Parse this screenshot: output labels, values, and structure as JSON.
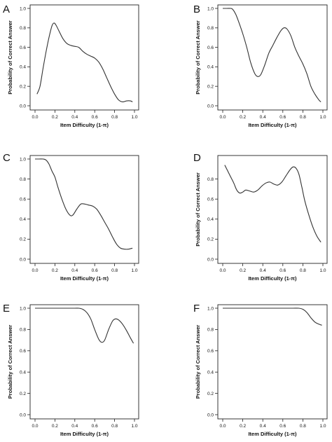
{
  "chart_data": [
    {
      "type": "line",
      "panel_label": "A",
      "xlabel": "Item Difficulty (1-π)",
      "ylabel": "Probability of Correct Answer",
      "xlim": [
        0,
        1
      ],
      "ylim": [
        0,
        1
      ],
      "x_ticks": [
        "0.0",
        "0.2",
        "0.4",
        "0.6",
        "0.8",
        "1.0"
      ],
      "y_ticks": [
        "0.0",
        "0.2",
        "0.4",
        "0.6",
        "0.8",
        "1.0"
      ],
      "series": [
        {
          "x": [
            0.02,
            0.05,
            0.08,
            0.11,
            0.14,
            0.17,
            0.19,
            0.21,
            0.24,
            0.28,
            0.32,
            0.36,
            0.4,
            0.44,
            0.48,
            0.52,
            0.56,
            0.6,
            0.64,
            0.68,
            0.72,
            0.76,
            0.8,
            0.84,
            0.88,
            0.92,
            0.96,
            0.98
          ],
          "values": [
            0.12,
            0.2,
            0.38,
            0.55,
            0.7,
            0.82,
            0.85,
            0.83,
            0.77,
            0.69,
            0.64,
            0.62,
            0.61,
            0.6,
            0.56,
            0.53,
            0.51,
            0.49,
            0.45,
            0.38,
            0.29,
            0.2,
            0.12,
            0.06,
            0.04,
            0.05,
            0.05,
            0.04
          ]
        }
      ]
    },
    {
      "type": "line",
      "panel_label": "B",
      "xlabel": "Item Difficulty (1-π)",
      "ylabel": "Probability of Correct Answer",
      "xlim": [
        0,
        1
      ],
      "ylim": [
        0,
        1
      ],
      "x_ticks": [
        "0.0",
        "0.2",
        "0.4",
        "0.6",
        "0.8",
        "1.0"
      ],
      "y_ticks": [
        "0.0",
        "0.2",
        "0.4",
        "0.6",
        "0.8",
        "1.0"
      ],
      "series": [
        {
          "x": [
            0.0,
            0.04,
            0.08,
            0.1,
            0.13,
            0.16,
            0.2,
            0.24,
            0.28,
            0.32,
            0.35,
            0.38,
            0.42,
            0.46,
            0.5,
            0.54,
            0.58,
            0.61,
            0.64,
            0.68,
            0.72,
            0.76,
            0.8,
            0.84,
            0.88,
            0.92,
            0.96,
            0.98
          ],
          "values": [
            1.0,
            1.0,
            1.0,
            0.99,
            0.94,
            0.86,
            0.74,
            0.6,
            0.44,
            0.33,
            0.3,
            0.32,
            0.42,
            0.54,
            0.62,
            0.7,
            0.77,
            0.8,
            0.79,
            0.72,
            0.6,
            0.51,
            0.43,
            0.33,
            0.2,
            0.12,
            0.06,
            0.04
          ]
        }
      ]
    },
    {
      "type": "line",
      "panel_label": "C",
      "xlabel": "Item Difficulty (1-π)",
      "ylabel": "",
      "xlim": [
        0,
        1
      ],
      "ylim": [
        0,
        1
      ],
      "x_ticks": [
        "0.0",
        "0.2",
        "0.4",
        "0.6",
        "0.8",
        "1.0"
      ],
      "y_ticks": [
        "0.0",
        "0.2",
        "0.4",
        "0.6",
        "0.8",
        "1.0"
      ],
      "series": [
        {
          "x": [
            0.0,
            0.04,
            0.08,
            0.11,
            0.14,
            0.17,
            0.2,
            0.23,
            0.27,
            0.31,
            0.35,
            0.38,
            0.42,
            0.46,
            0.5,
            0.54,
            0.58,
            0.62,
            0.66,
            0.7,
            0.74,
            0.78,
            0.82,
            0.86,
            0.9,
            0.94,
            0.98
          ],
          "values": [
            1.0,
            1.0,
            1.0,
            0.99,
            0.95,
            0.88,
            0.82,
            0.72,
            0.6,
            0.5,
            0.44,
            0.44,
            0.5,
            0.55,
            0.55,
            0.54,
            0.53,
            0.5,
            0.44,
            0.37,
            0.3,
            0.22,
            0.15,
            0.11,
            0.1,
            0.1,
            0.11
          ]
        }
      ]
    },
    {
      "type": "line",
      "panel_label": "D",
      "xlabel": "Item Difficulty (1-π)",
      "ylabel": "Probability of Correct Answer",
      "xlim": [
        0,
        1
      ],
      "ylim": [
        0,
        1
      ],
      "x_ticks": [
        "0.0",
        "0.2",
        "0.4",
        "0.6",
        "0.8",
        "1.0"
      ],
      "y_ticks": [
        "0.0",
        "0.2",
        "0.4",
        "0.6",
        "0.8"
      ],
      "series": [
        {
          "x": [
            0.02,
            0.05,
            0.08,
            0.11,
            0.14,
            0.17,
            0.2,
            0.23,
            0.27,
            0.31,
            0.35,
            0.39,
            0.43,
            0.47,
            0.51,
            0.55,
            0.59,
            0.63,
            0.67,
            0.7,
            0.73,
            0.76,
            0.79,
            0.82,
            0.86,
            0.9,
            0.94,
            0.98
          ],
          "values": [
            0.94,
            0.88,
            0.82,
            0.76,
            0.69,
            0.66,
            0.67,
            0.69,
            0.68,
            0.67,
            0.69,
            0.73,
            0.76,
            0.77,
            0.75,
            0.74,
            0.77,
            0.83,
            0.89,
            0.92,
            0.91,
            0.85,
            0.72,
            0.58,
            0.44,
            0.32,
            0.23,
            0.17
          ]
        }
      ]
    },
    {
      "type": "line",
      "panel_label": "E",
      "xlabel": "Item Difficulty (1-π)",
      "ylabel": "Probability of Correct Answer",
      "xlim": [
        0,
        1
      ],
      "ylim": [
        0,
        1
      ],
      "x_ticks": [
        "0.0",
        "0.2",
        "0.4",
        "0.6",
        "0.8",
        "1.0"
      ],
      "y_ticks": [
        "0.0",
        "0.2",
        "0.4",
        "0.6",
        "0.8",
        "1.0"
      ],
      "series": [
        {
          "x": [
            0.0,
            0.1,
            0.2,
            0.3,
            0.4,
            0.44,
            0.48,
            0.52,
            0.56,
            0.6,
            0.64,
            0.67,
            0.7,
            0.74,
            0.78,
            0.81,
            0.84,
            0.88,
            0.92,
            0.96,
            0.99
          ],
          "values": [
            1.0,
            1.0,
            1.0,
            1.0,
            1.0,
            1.0,
            0.99,
            0.96,
            0.9,
            0.8,
            0.71,
            0.68,
            0.7,
            0.8,
            0.88,
            0.9,
            0.89,
            0.85,
            0.79,
            0.72,
            0.67
          ]
        }
      ]
    },
    {
      "type": "line",
      "panel_label": "F",
      "xlabel": "Item Difficulty (1-π)",
      "ylabel": "Probability of Correct Answer",
      "xlim": [
        0,
        1
      ],
      "ylim": [
        0,
        1
      ],
      "x_ticks": [
        "0.0",
        "0.2",
        "0.4",
        "0.6",
        "0.8",
        "1.0"
      ],
      "y_ticks": [
        "0.0",
        "0.2",
        "0.4",
        "0.6",
        "0.8",
        "1.0"
      ],
      "series": [
        {
          "x": [
            0.0,
            0.2,
            0.4,
            0.6,
            0.7,
            0.76,
            0.8,
            0.84,
            0.88,
            0.92,
            0.96,
            0.99
          ],
          "values": [
            1.0,
            1.0,
            1.0,
            1.0,
            1.0,
            1.0,
            0.99,
            0.96,
            0.91,
            0.87,
            0.85,
            0.84
          ]
        }
      ]
    }
  ]
}
